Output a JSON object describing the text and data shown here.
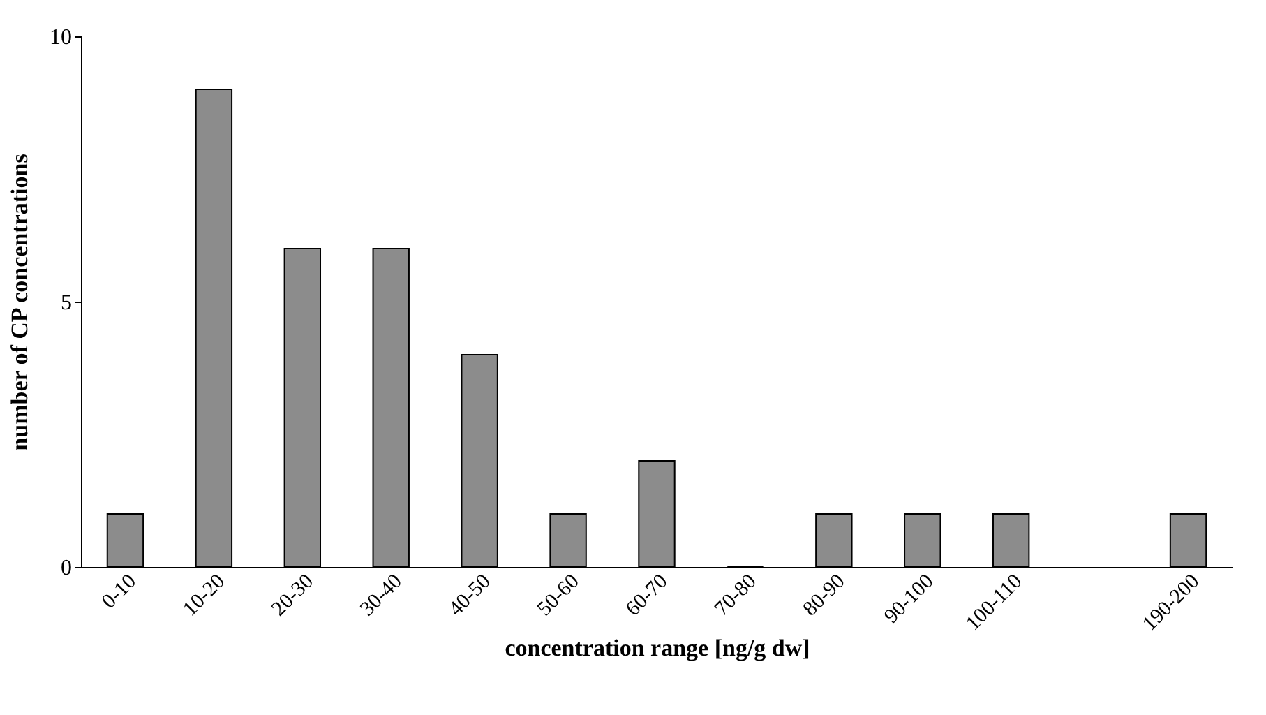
{
  "chart_data": {
    "type": "bar",
    "xlabel": "concentration range [ng/g dw]",
    "ylabel": "number of CP concentrations",
    "categories": [
      "0-10",
      "10-20",
      "20-30",
      "30-40",
      "40-50",
      "50-60",
      "60-70",
      "70-80",
      "80-90",
      "90-100",
      "100-110",
      null,
      "190-200"
    ],
    "values": [
      1,
      9,
      6,
      6,
      4,
      1,
      2,
      0,
      1,
      1,
      1,
      null,
      1
    ],
    "color": "#8c8c8c",
    "ylim": [
      0,
      10
    ],
    "yticks": [
      0,
      5,
      10
    ]
  }
}
